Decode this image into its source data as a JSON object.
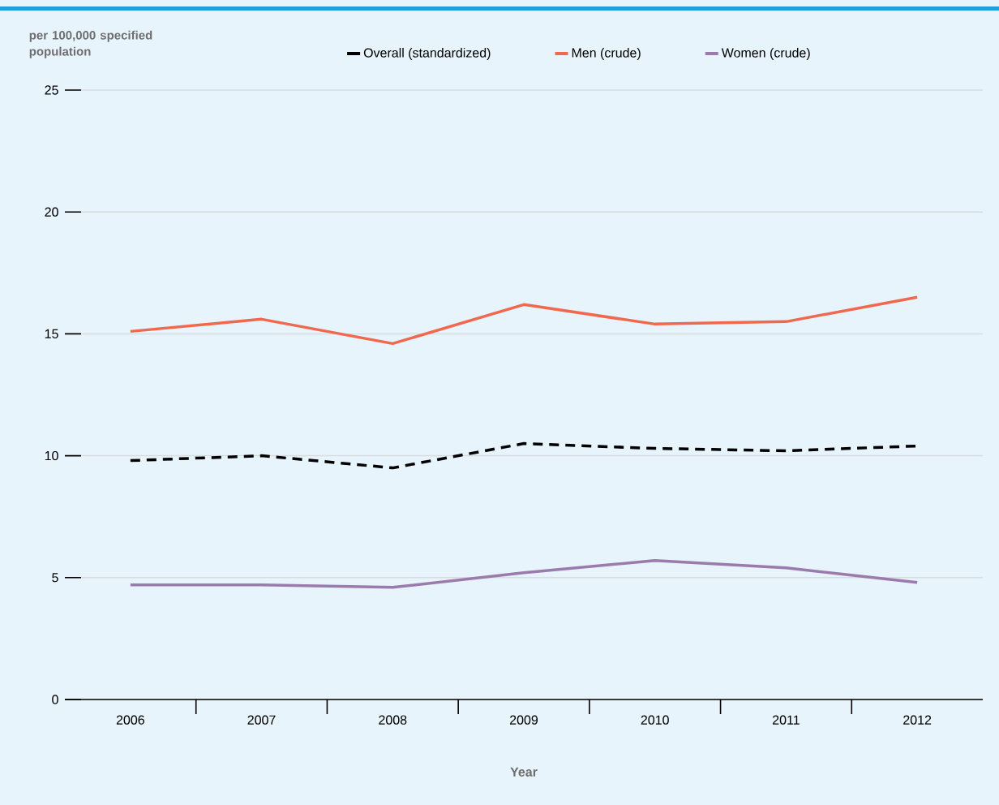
{
  "chart_data": {
    "type": "line",
    "xlabel": "Year",
    "ylabel": "per 100,000 specified population",
    "categories": [
      "2006",
      "2007",
      "2008",
      "2009",
      "2010",
      "2011",
      "2012"
    ],
    "series": [
      {
        "name": "Overall (standardized)",
        "color": "#000000",
        "line_style": "dashed",
        "values": [
          9.8,
          10.0,
          9.5,
          10.5,
          10.3,
          10.2,
          10.4
        ]
      },
      {
        "name": "Men (crude)",
        "color": "#f0694f",
        "values": [
          15.1,
          15.6,
          14.6,
          16.2,
          15.4,
          15.5,
          16.5
        ]
      },
      {
        "name": "Women (crude)",
        "color": "#9b7bab",
        "values": [
          4.7,
          4.7,
          4.6,
          5.2,
          5.7,
          5.4,
          4.8
        ]
      }
    ],
    "ylim": [
      0,
      25
    ],
    "yticks": [
      0,
      5,
      10,
      15,
      20,
      25
    ],
    "grid": "y",
    "legend": "top",
    "marker": "none",
    "line_style": "solid"
  }
}
